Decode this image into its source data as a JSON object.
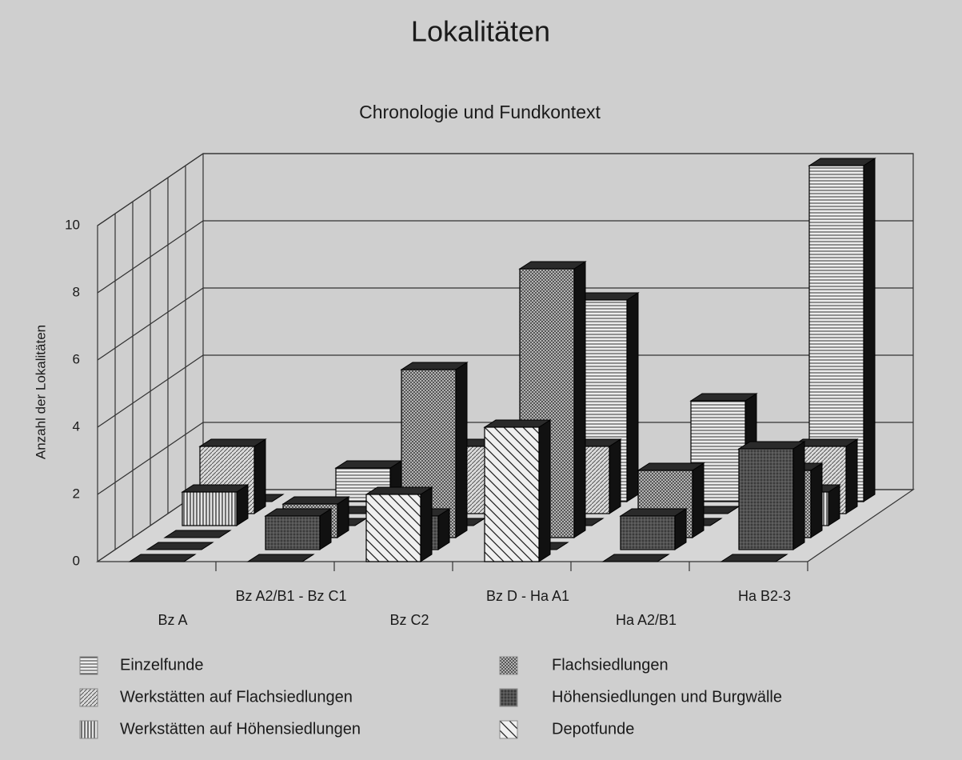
{
  "chart_data": {
    "type": "bar3d",
    "title": "Lokalitäten",
    "subtitle": "Chronologie und Fundkontext",
    "y_label": "Anzahl der Lokalitäten",
    "categories": [
      "Bz A",
      "Bz A2/B1 - Bz C1",
      "Bz C2",
      "Bz D - Ha A1",
      "Ha A2/B1",
      "Ha B2-3"
    ],
    "series": [
      {
        "name": "Einzelfunde",
        "color": "#e8e8e8",
        "pattern": "hlines",
        "values": [
          0,
          1,
          1,
          6,
          3,
          10
        ]
      },
      {
        "name": "Werkstätten auf Flachsiedlungen",
        "color": "#d8d8d8",
        "pattern": "diag",
        "values": [
          2,
          0,
          2,
          2,
          0,
          2
        ]
      },
      {
        "name": "Werkstätten auf Höhensiedlungen",
        "color": "#e0e0e0",
        "pattern": "vlines",
        "values": [
          1,
          0,
          0,
          0,
          0,
          1
        ]
      },
      {
        "name": "Flachsiedlungen",
        "color": "#c8c8c8",
        "pattern": "cross",
        "values": [
          0,
          1,
          5,
          8,
          2,
          2
        ]
      },
      {
        "name": "Höhensiedlungen und Burgwälle",
        "color": "#555555",
        "pattern": "dark",
        "values": [
          0,
          1,
          1,
          0,
          1,
          3
        ]
      },
      {
        "name": "Depotfunde",
        "color": "#ececec",
        "pattern": "wdiag",
        "values": [
          0,
          0,
          2,
          4,
          0,
          0
        ]
      }
    ],
    "ylim": [
      0,
      10
    ],
    "yticks": [
      0,
      2,
      4,
      6,
      8,
      10
    ],
    "grid": true
  }
}
